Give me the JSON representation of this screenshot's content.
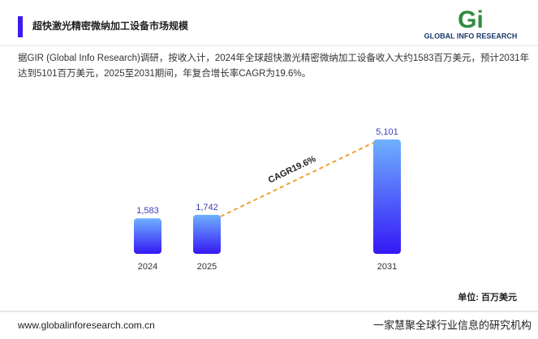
{
  "header": {
    "title": "超快激光精密微纳加工设备市场规模",
    "logo_text": "GLOBAL INFO RESEARCH"
  },
  "description": [
    "据GIR (Global Info Research)调研，按收入计，2024年全球超快激光精密微纳加工设备收入大约1583百万美元，预计2031年",
    "达到5101百万美元，2025至2031期间，年复合增长率CAGR为19.6%。"
  ],
  "chart_data": {
    "type": "bar",
    "categories": [
      "2024",
      "2025",
      "2031"
    ],
    "values": [
      1583,
      1742,
      5101
    ],
    "value_labels": [
      "1,583",
      "1,742",
      "5,101"
    ],
    "annotation": "CAGR19.6%",
    "unit": "单位: 百万美元",
    "colors": [
      "#6fb0ff",
      "#3418f5"
    ],
    "label_color": "#3c3cb4",
    "trend_color": "#f0a030"
  },
  "footer": {
    "website": "www.globalinforesearch.com.cn",
    "slogan": "一家慧聚全球行业信息的研究机构"
  }
}
